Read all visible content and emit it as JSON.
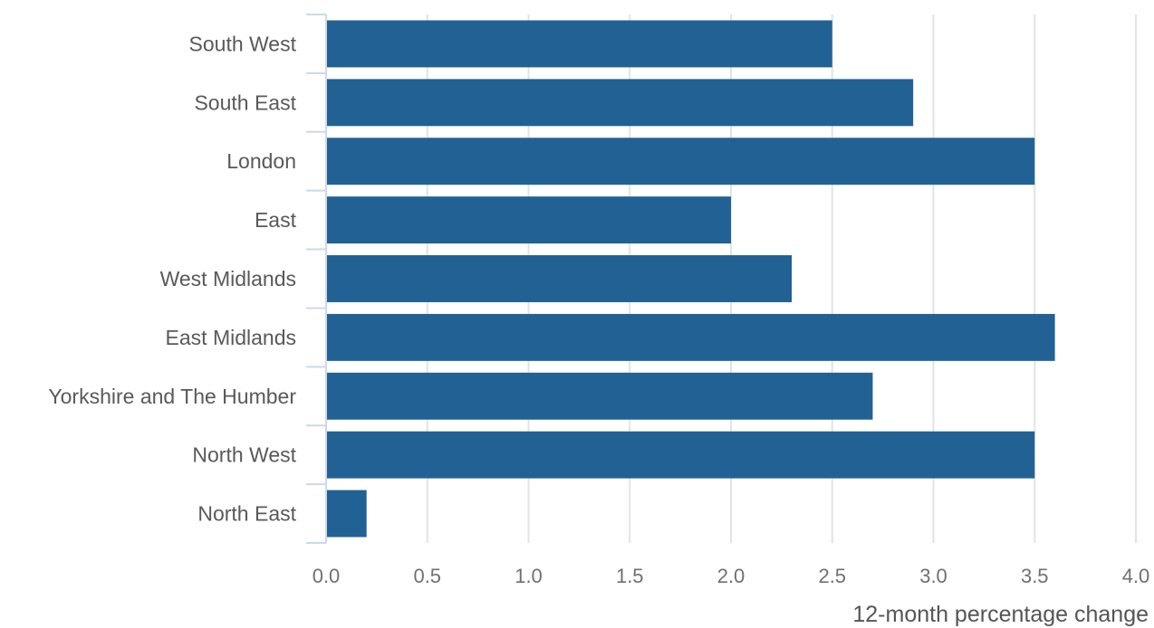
{
  "chart_data": {
    "type": "bar",
    "orientation": "horizontal",
    "categories": [
      "South West",
      "South East",
      "London",
      "East",
      "West Midlands",
      "East Midlands",
      "Yorkshire and The Humber",
      "North West",
      "North East"
    ],
    "values": [
      2.5,
      2.9,
      3.5,
      2.0,
      2.3,
      3.6,
      2.7,
      3.5,
      0.2
    ],
    "xlabel": "12-month percentage change",
    "xlim": [
      0,
      4
    ],
    "xticks": [
      "0.0",
      "0.5",
      "1.0",
      "1.5",
      "2.0",
      "2.5",
      "3.0",
      "3.5",
      "4.0"
    ],
    "grid": true,
    "bar_color": "#226193"
  }
}
